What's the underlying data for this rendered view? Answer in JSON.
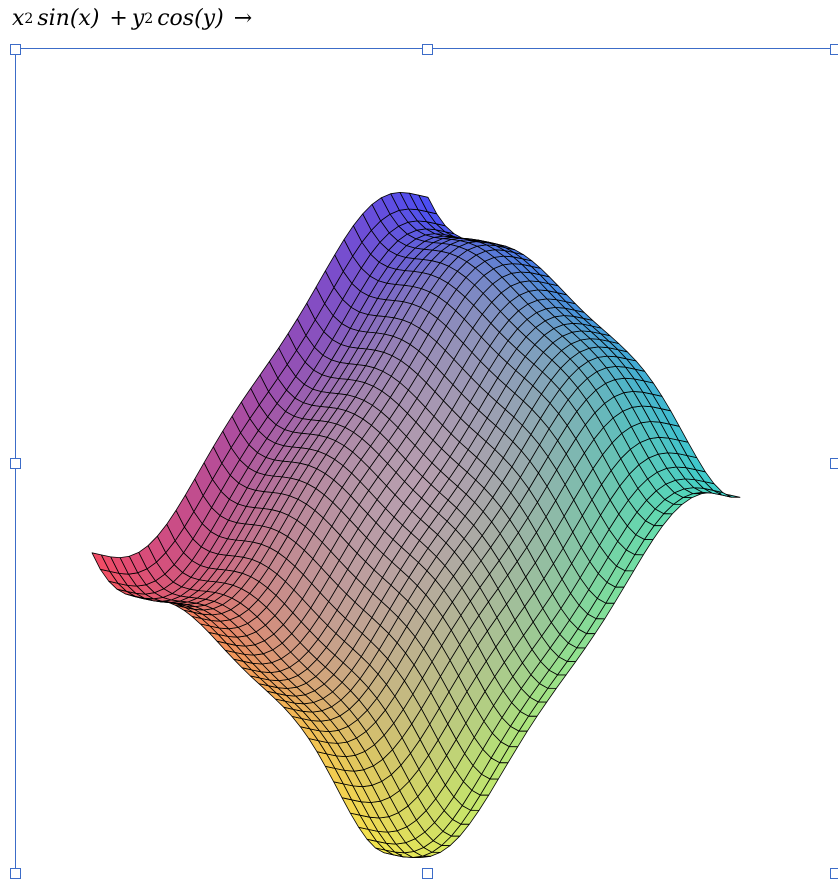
{
  "expression": {
    "x_var": "x",
    "x_exp": "2",
    "x_func": "sin",
    "x_arg": "(x)",
    "plus": "+",
    "y_var": "y",
    "y_exp": "2",
    "y_func": "cos",
    "y_arg": "(y)",
    "arrow": "→"
  },
  "plot": {
    "function": "x^2 sin(x) + y^2 cos(y)",
    "mesh_color": "#000000",
    "colors": {
      "corner_left": "#f24a64",
      "corner_top": "#4a4cf6",
      "corner_right": "#3cd8c8",
      "corner_bottom": "#f6f04a",
      "center": "#c0a0b4"
    }
  },
  "selection": {
    "border_color": "#3c6cc8",
    "handles": [
      "top-left",
      "top-center",
      "top-right",
      "middle-left",
      "middle-right",
      "bottom-left",
      "bottom-center",
      "bottom-right"
    ]
  }
}
